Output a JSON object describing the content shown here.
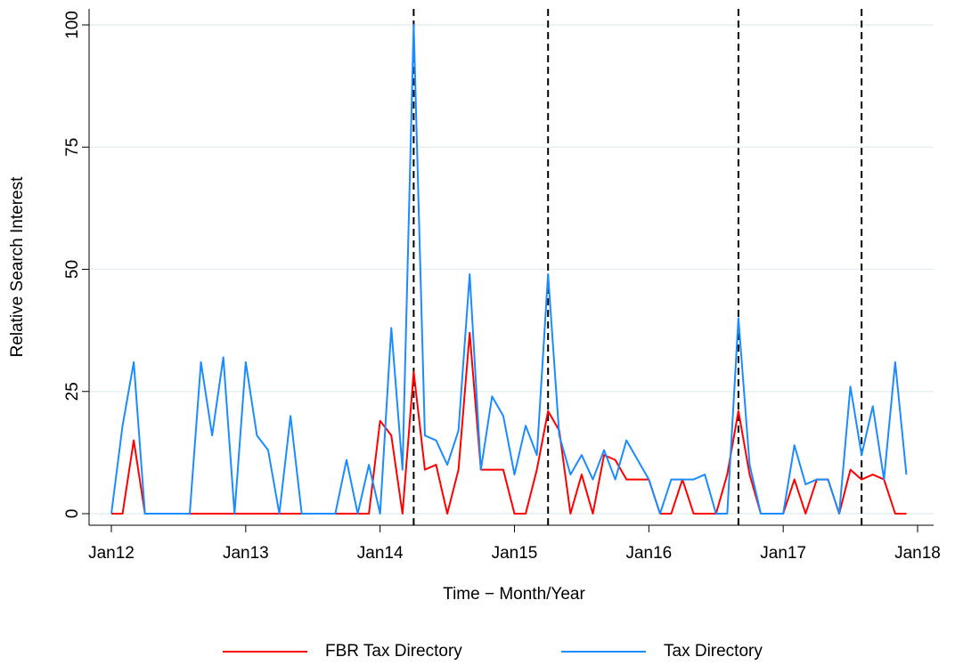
{
  "chart_data": {
    "type": "line",
    "x_label": "Time − Month/Year",
    "y_label": "Relative Search Interest",
    "x": [
      "2012-01",
      "2012-02",
      "2012-03",
      "2012-04",
      "2012-05",
      "2012-06",
      "2012-07",
      "2012-08",
      "2012-09",
      "2012-10",
      "2012-11",
      "2012-12",
      "2013-01",
      "2013-02",
      "2013-03",
      "2013-04",
      "2013-05",
      "2013-06",
      "2013-07",
      "2013-08",
      "2013-09",
      "2013-10",
      "2013-11",
      "2013-12",
      "2014-01",
      "2014-02",
      "2014-03",
      "2014-04",
      "2014-05",
      "2014-06",
      "2014-07",
      "2014-08",
      "2014-09",
      "2014-10",
      "2014-11",
      "2014-12",
      "2015-01",
      "2015-02",
      "2015-03",
      "2015-04",
      "2015-05",
      "2015-06",
      "2015-07",
      "2015-08",
      "2015-09",
      "2015-10",
      "2015-11",
      "2015-12",
      "2016-01",
      "2016-02",
      "2016-03",
      "2016-04",
      "2016-05",
      "2016-06",
      "2016-07",
      "2016-08",
      "2016-09",
      "2016-10",
      "2016-11",
      "2016-12",
      "2017-01",
      "2017-02",
      "2017-03",
      "2017-04",
      "2017-05",
      "2017-06",
      "2017-07",
      "2017-08",
      "2017-09",
      "2017-10",
      "2017-11",
      "2017-12"
    ],
    "series": [
      {
        "name": "FBR Tax Directory",
        "color": "#ff0000",
        "values": [
          0,
          0,
          15,
          0,
          0,
          0,
          0,
          0,
          0,
          0,
          0,
          0,
          0,
          0,
          0,
          0,
          0,
          0,
          0,
          0,
          0,
          0,
          0,
          0,
          19,
          16,
          0,
          29,
          9,
          10,
          0,
          9,
          37,
          9,
          9,
          9,
          0,
          0,
          9,
          21,
          17,
          0,
          8,
          0,
          12,
          11,
          7,
          7,
          7,
          0,
          0,
          7,
          0,
          0,
          0,
          8,
          21,
          8,
          0,
          0,
          0,
          7,
          0,
          7,
          7,
          0,
          9,
          7,
          8,
          7,
          0,
          0
        ]
      },
      {
        "name": "Tax Directory",
        "color": "#1a8cff",
        "values": [
          0,
          18,
          31,
          0,
          0,
          0,
          0,
          0,
          31,
          16,
          32,
          0,
          31,
          16,
          13,
          0,
          20,
          0,
          0,
          0,
          0,
          11,
          0,
          10,
          0,
          38,
          9,
          100,
          16,
          15,
          10,
          17,
          49,
          9,
          24,
          20,
          8,
          18,
          12,
          49,
          16,
          8,
          12,
          7,
          13,
          7,
          15,
          11,
          7,
          0,
          7,
          7,
          7,
          8,
          0,
          0,
          40,
          10,
          0,
          0,
          0,
          14,
          6,
          7,
          7,
          0,
          26,
          12,
          22,
          7,
          31,
          8
        ]
      }
    ],
    "xlim": [
      "2012-01",
      "2018-01"
    ],
    "xticks": [
      {
        "value": "2012-01",
        "label": "Jan12"
      },
      {
        "value": "2013-01",
        "label": "Jan13"
      },
      {
        "value": "2014-01",
        "label": "Jan14"
      },
      {
        "value": "2015-01",
        "label": "Jan15"
      },
      {
        "value": "2016-01",
        "label": "Jan16"
      },
      {
        "value": "2017-01",
        "label": "Jan17"
      },
      {
        "value": "2018-01",
        "label": "Jan18"
      }
    ],
    "ylim": [
      0,
      100
    ],
    "yticks": [
      0,
      25,
      50,
      75,
      100
    ],
    "grid": true,
    "vlines": [
      "2014-04",
      "2015-04",
      "2016-09",
      "2017-08"
    ],
    "legend": "bottom"
  }
}
